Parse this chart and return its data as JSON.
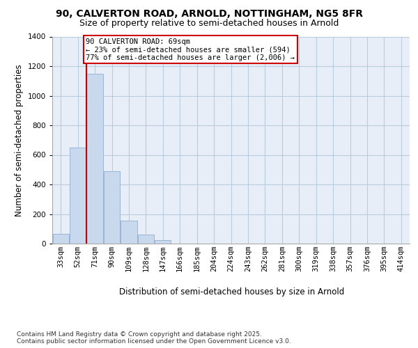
{
  "title_line1": "90, CALVERTON ROAD, ARNOLD, NOTTINGHAM, NG5 8FR",
  "title_line2": "Size of property relative to semi-detached houses in Arnold",
  "xlabel": "Distribution of semi-detached houses by size in Arnold",
  "ylabel": "Number of semi-detached properties",
  "categories": [
    "33sqm",
    "52sqm",
    "71sqm",
    "90sqm",
    "109sqm",
    "128sqm",
    "147sqm",
    "166sqm",
    "185sqm",
    "204sqm",
    "224sqm",
    "243sqm",
    "262sqm",
    "281sqm",
    "300sqm",
    "319sqm",
    "338sqm",
    "357sqm",
    "376sqm",
    "395sqm",
    "414sqm"
  ],
  "values": [
    65,
    650,
    1150,
    490,
    155,
    60,
    25,
    0,
    0,
    0,
    0,
    0,
    0,
    0,
    0,
    0,
    0,
    0,
    0,
    0,
    0
  ],
  "bar_color": "#c8d9ee",
  "bar_edge_color": "#9ab5d5",
  "grid_color": "#b8cce0",
  "background_color": "#e8eef8",
  "vline_color": "#cc0000",
  "annotation_text": "90 CALVERTON ROAD: 69sqm\n← 23% of semi-detached houses are smaller (594)\n77% of semi-detached houses are larger (2,006) →",
  "annotation_box_edge_color": "#cc0000",
  "ylim": [
    0,
    1400
  ],
  "yticks": [
    0,
    200,
    400,
    600,
    800,
    1000,
    1200,
    1400
  ],
  "footnote": "Contains HM Land Registry data © Crown copyright and database right 2025.\nContains public sector information licensed under the Open Government Licence v3.0.",
  "title_fontsize": 10,
  "subtitle_fontsize": 9,
  "axis_label_fontsize": 8.5,
  "tick_fontsize": 7.5,
  "annotation_fontsize": 7.5,
  "footnote_fontsize": 6.5
}
